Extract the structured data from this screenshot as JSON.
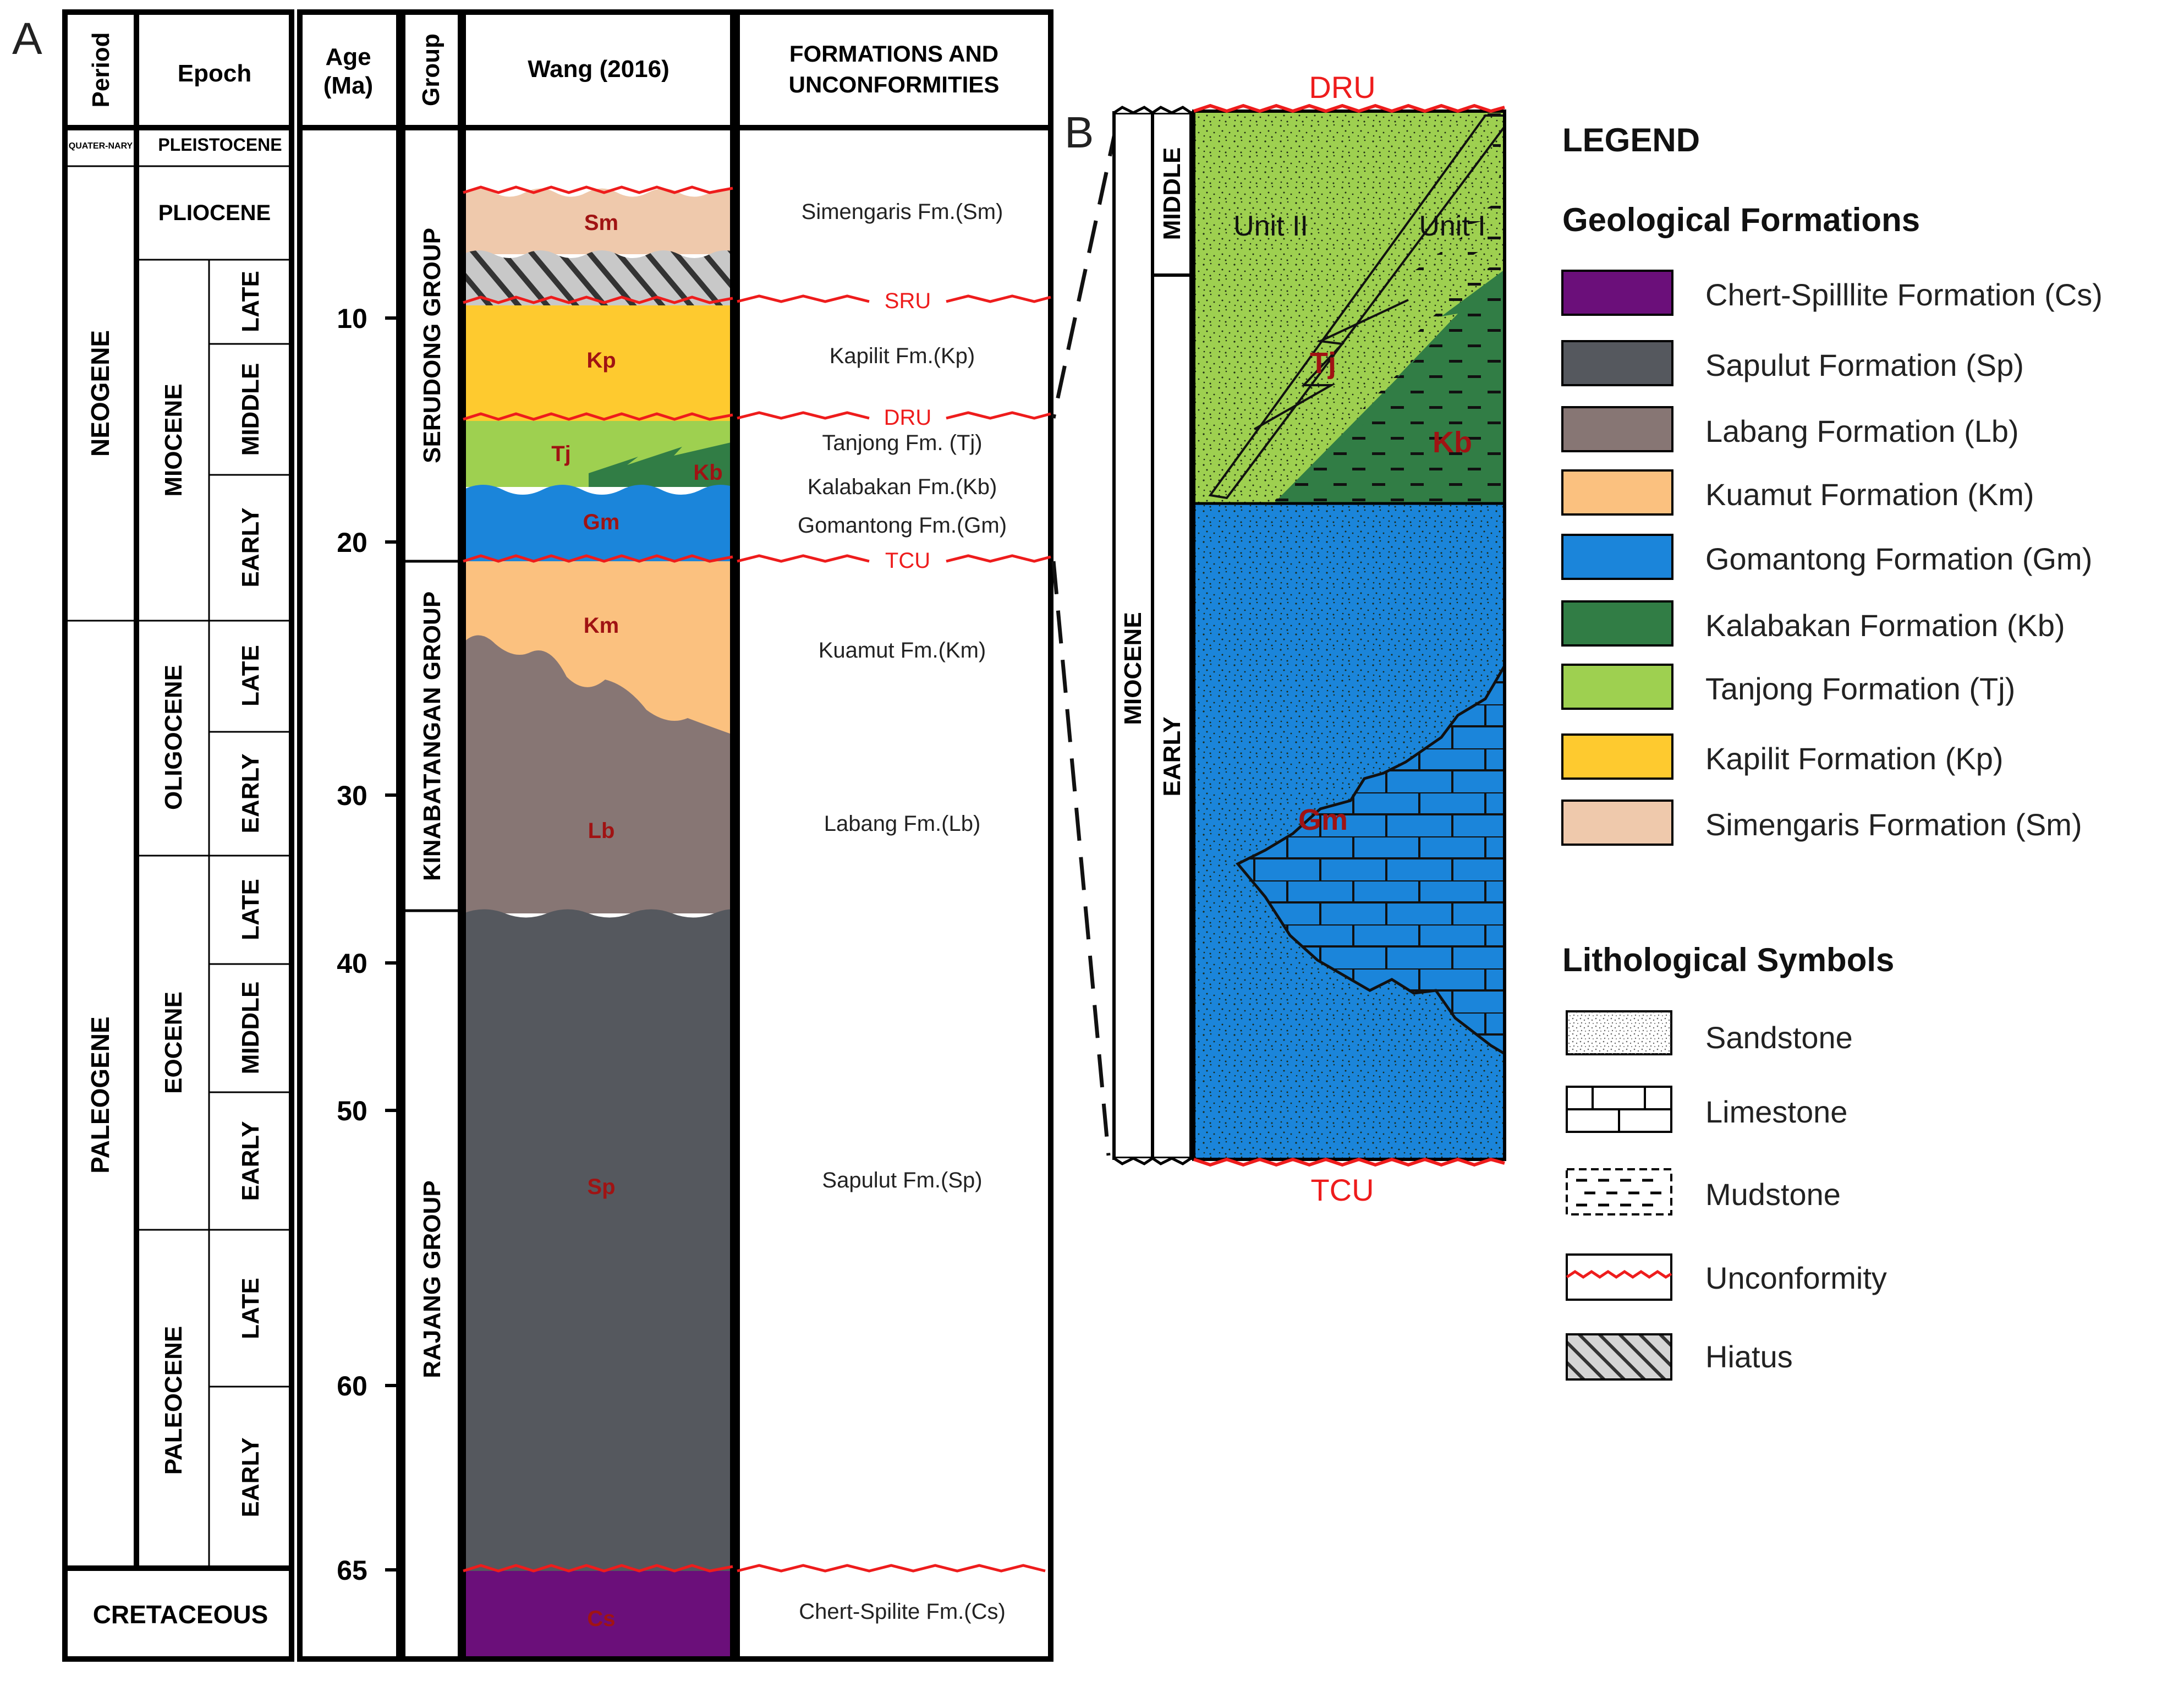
{
  "panel_a": {
    "label": "A",
    "headers": {
      "period": "Period",
      "epoch": "Epoch",
      "age": "Age (Ma)",
      "group": "Group",
      "column": "Wang (2016)",
      "formations": "FORMATIONS AND UNCONFORMITIES"
    },
    "periods": [
      "QUATER-NARY",
      "NEOGENE",
      "PALEOGENE",
      "CRETACEOUS"
    ],
    "epochs": [
      "PLEISTOCENE",
      "PLIOCENE",
      "MIOCENE",
      "OLIGOCENE",
      "EOCENE",
      "PALEOCENE"
    ],
    "subepochs": [
      "LATE",
      "MIDDLE",
      "EARLY",
      "LATE",
      "EARLY",
      "LATE",
      "MIDDLE",
      "EARLY",
      "LATE",
      "EARLY"
    ],
    "ages": [
      "10",
      "20",
      "30",
      "40",
      "50",
      "60",
      "65"
    ],
    "groups": [
      "SERUDONG GROUP",
      "KINABATANGAN GROUP",
      "RAJANG GROUP"
    ],
    "unit_codes": [
      "Sm",
      "Kp",
      "Tj",
      "Kb",
      "Gm",
      "Km",
      "Lb",
      "Sp",
      "Cs"
    ],
    "unconformities": [
      "SRU",
      "DRU",
      "TCU"
    ],
    "formations": [
      "Simengaris Fm.(Sm)",
      "Kapilit Fm.(Kp)",
      "Tanjong Fm. (Tj)",
      "Kalabakan Fm.(Kb)",
      "Gomantong Fm.(Gm)",
      "Kuamut Fm.(Km)",
      "Labang Fm.(Lb)",
      "Sapulut Fm.(Sp)",
      "Chert-Spilite Fm.(Cs)"
    ]
  },
  "panel_b": {
    "label": "B",
    "top": "DRU",
    "bottom": "TCU",
    "epoch": "MIOCENE",
    "subepochs": [
      "MIDDLE",
      "EARLY"
    ],
    "units": [
      "Unit II",
      "Unit I"
    ],
    "codes": [
      "Tj",
      "Kb",
      "Gm"
    ]
  },
  "legend": {
    "title": "LEGEND",
    "formations_title": "Geological Formations",
    "formations": [
      {
        "label": "Chert-Spilllite Formation (Cs)",
        "color": "#6B0F7A"
      },
      {
        "label": "Sapulut Formation (Sp)",
        "color": "#55585E"
      },
      {
        "label": "Labang Formation (Lb)",
        "color": "#877674"
      },
      {
        "label": "Kuamut Formation (Km)",
        "color": "#FBC17F"
      },
      {
        "label": "Gomantong Formation (Gm)",
        "color": "#1B85DA"
      },
      {
        "label": "Kalabakan Formation (Kb)",
        "color": "#317D45"
      },
      {
        "label": "Tanjong Formation (Tj)",
        "color": "#9ED050"
      },
      {
        "label": "Kapilit Formation (Kp)",
        "color": "#FECA2F"
      },
      {
        "label": "Simengaris Formation (Sm)",
        "color": "#EFC9AC"
      }
    ],
    "litho_title": "Lithological Symbols",
    "symbols": [
      "Sandstone",
      "Limestone",
      "Mudstone",
      "Unconformity",
      "Hiatus"
    ]
  },
  "colors": {
    "unconformity": "#EE1C1C",
    "code_text": "#A01313",
    "hiatus": "#C8C8C8"
  }
}
